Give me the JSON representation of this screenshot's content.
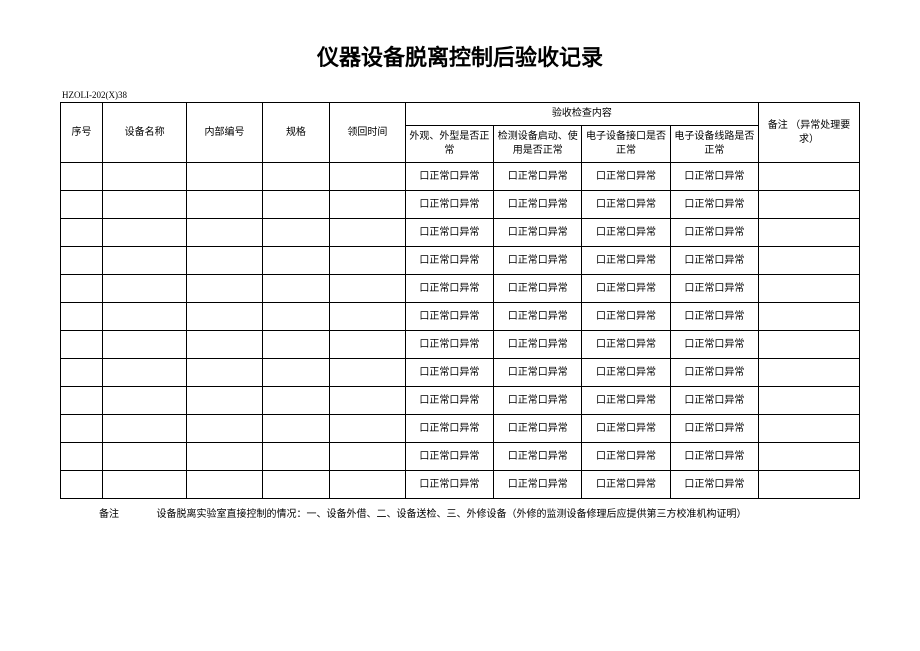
{
  "title": "仪器设备脱离控制后验收记录",
  "doc_code": "HZOLI-202(X)38",
  "headers": {
    "seq": "序号",
    "device_name": "设备名称",
    "internal_code": "内部编号",
    "spec": "规格",
    "return_time": "领回时间",
    "inspection_group": "验收检查内容",
    "check1": "外观、外型是否正常",
    "check2": "检测设备启动、使用是否正常",
    "check3": "电子设备接口是否正常",
    "check4": "电子设备线路是否正常",
    "remark": "备注\n（异常处理要求）"
  },
  "cell_text": "口正常口异常",
  "row_count": 12,
  "footer": {
    "label": "备注",
    "text": "设备脱离实验室直接控制的情况：一、设备外借、二、设备送检、三、外修设备（外修的监测设备修理后应提供第三方校准机构证明）"
  },
  "style": {
    "background_color": "#ffffff",
    "border_color": "#000000",
    "title_fontsize": 22,
    "body_fontsize": 10,
    "code_fontsize": 9
  }
}
